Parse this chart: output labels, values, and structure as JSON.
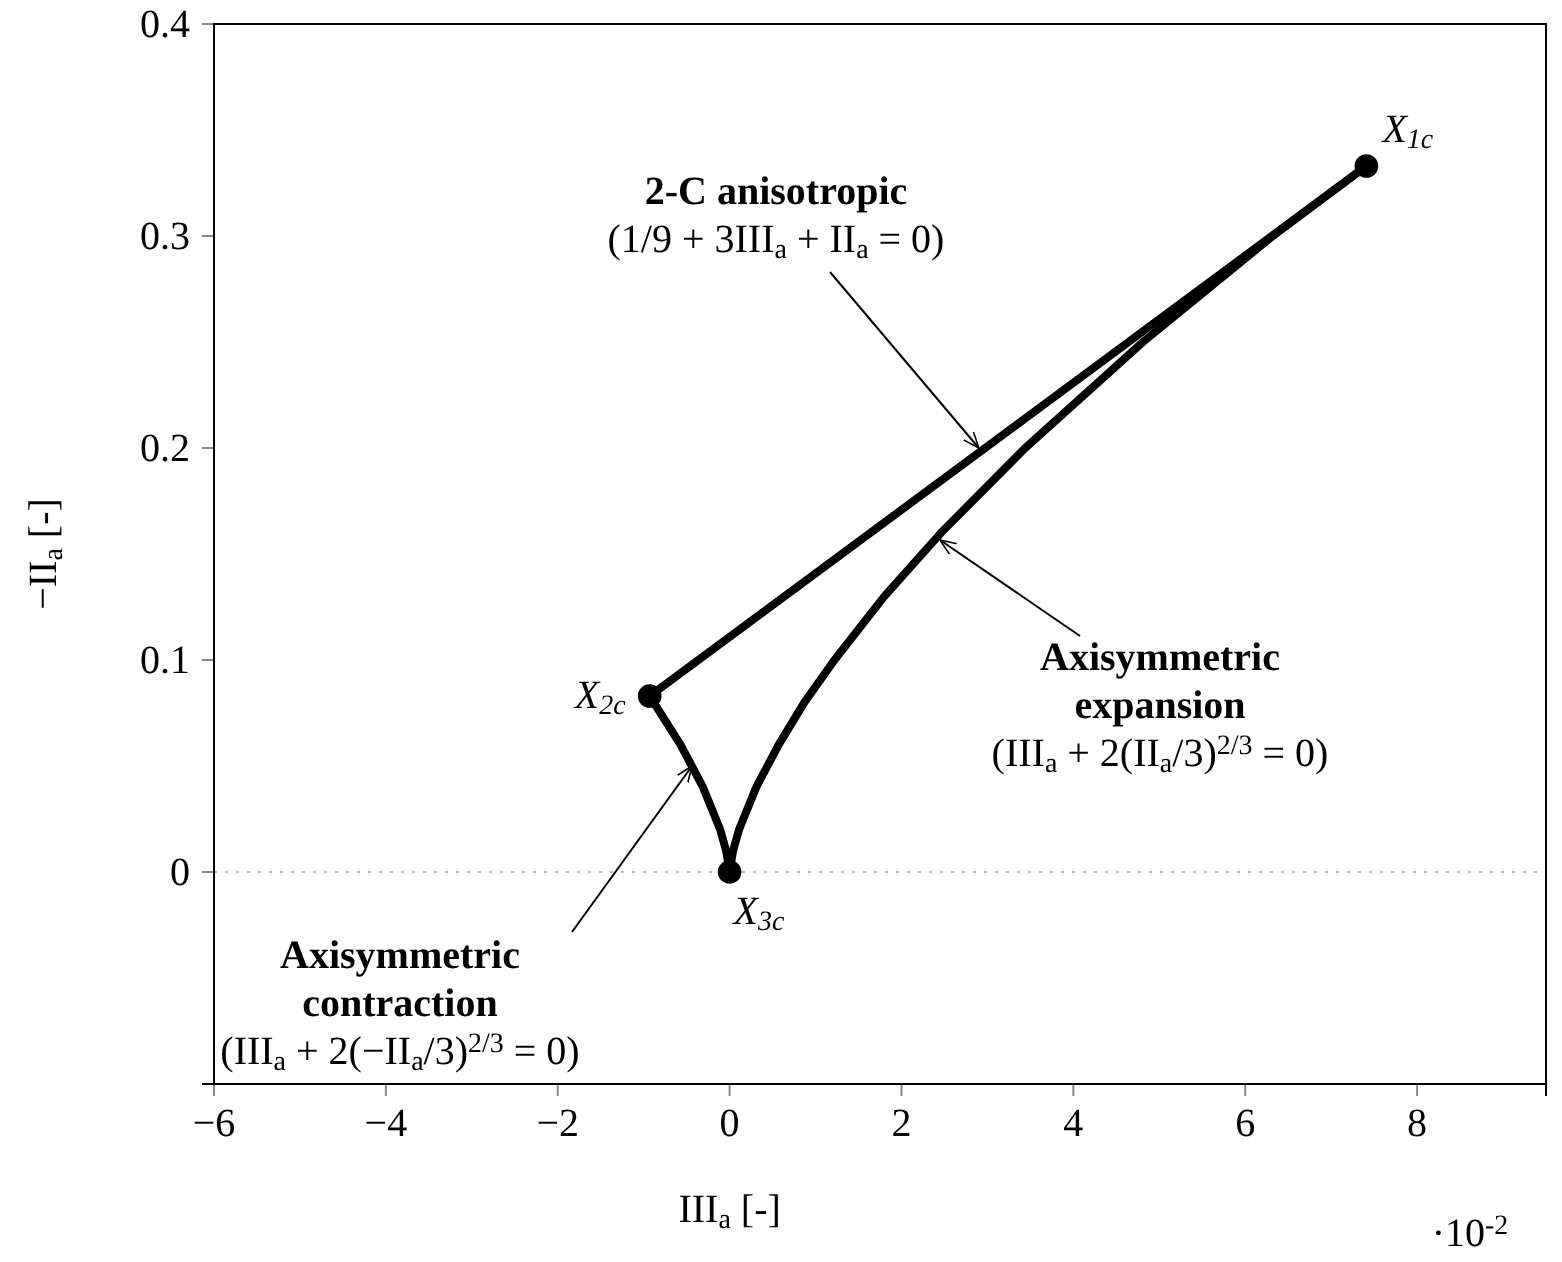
{
  "chart_data": {
    "type": "line",
    "xlabel": "III$_{a}$   [-]",
    "ylabel": "−II$_{a}$   [-]",
    "xlim": [
      -6,
      9.5
    ],
    "xticks": [
      -6,
      -4,
      -2,
      0,
      2,
      4,
      6,
      8
    ],
    "ylim": [
      -0.1,
      0.4
    ],
    "yticks": [
      0,
      0.1,
      0.2,
      0.3,
      0.4
    ],
    "line_style": "solid",
    "series": [
      {
        "color": "#000000",
        "x": [
          -0.93,
          7.41
        ],
        "values": [
          0.083,
          0.333
        ]
      },
      {
        "color": "#000000",
        "x": [
          0,
          0.04,
          0.11,
          0.31,
          0.57,
          0.87,
          1.22,
          1.8,
          2.46,
          3.44,
          4.81,
          6.32,
          7.41
        ],
        "values": [
          0,
          0.01,
          0.02,
          0.04,
          0.06,
          0.08,
          0.1,
          0.13,
          0.16,
          0.2,
          0.25,
          0.3,
          0.333
        ]
      },
      {
        "color": "#000000",
        "x": [
          0,
          -0.04,
          -0.11,
          -0.31,
          -0.57,
          -0.93
        ],
        "values": [
          0,
          0.01,
          0.02,
          0.04,
          0.06,
          0.083
        ]
      },
      {
        "type": "scatter",
        "color": "#000000",
        "marker": "circle",
        "x": [
          7.41,
          -0.93,
          0
        ],
        "values": [
          0.333,
          0.083,
          0
        ]
      }
    ],
    "ref_lines": [
      {
        "axis": "y",
        "value": 0,
        "color": "#bbbbbb",
        "line_style": "dotted"
      }
    ],
    "annotations": [
      {
        "text": "2-C anisotropic\n(1/9 + 3III$_{a}$ + II$_{a}$ = 0)",
        "x": 2.9,
        "y": 0.2
      },
      "Axisymmetric\nexpansion\n(III$_{a}$ + 2(II$_{a}$/3)$^{2/3}$ = 0)",
      "Axisymmetric\ncontraction\n(III$_{a}$ + 2(−II$_{a}$/3)$^{2/3}$ = 0)",
      {
        "text": "X$_{1c}$",
        "x": 7.41,
        "y": 0.333
      },
      {
        "text": "X$_{2c}$",
        "x": -0.93,
        "y": 0.083
      },
      {
        "text": "X$_{3c}$",
        "x": 0,
        "y": 0
      },
      "·10$^{-2}$"
    ]
  }
}
